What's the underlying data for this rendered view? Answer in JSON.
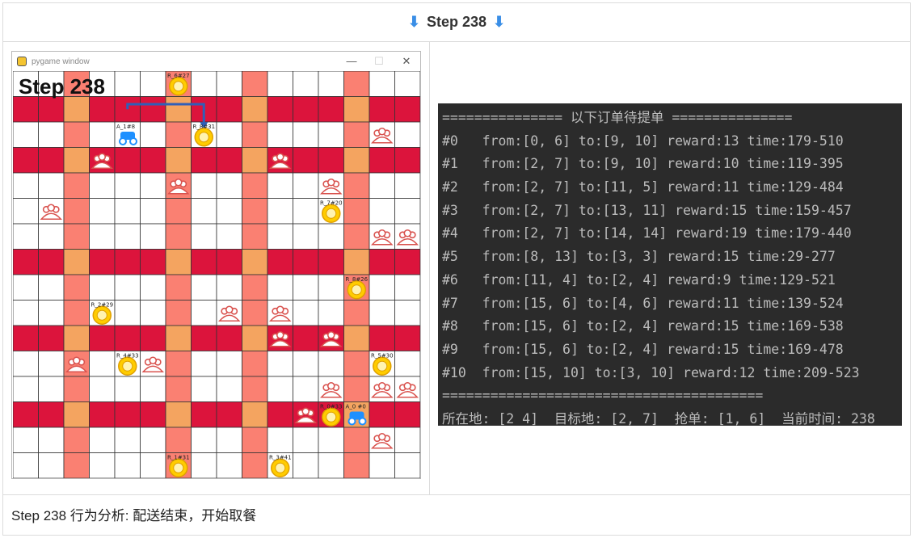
{
  "header": {
    "title": "Step 238",
    "arrow_left": "⬇",
    "arrow_right": "⬇"
  },
  "footer": {
    "text": "Step 238 行为分析:  配送结束，开始取餐"
  },
  "window": {
    "title": "pygame window",
    "min": "—",
    "max": "☐",
    "close": "✕"
  },
  "game": {
    "step_label": "Step 238",
    "grid_size": 16,
    "colors": {
      "road_dark": "#dc143c",
      "road_mid": "#fa8072",
      "road_light": "#f4a460",
      "cell": "#ffffff",
      "line": "#333333",
      "path": "#2f5fb8"
    },
    "dark_rows": [
      1,
      3,
      7,
      10,
      13
    ],
    "mid_cols": [
      2,
      6,
      9,
      13
    ],
    "orders": [
      {
        "label": "R_6#27",
        "col": 6,
        "row": 0
      },
      {
        "label": "R_8#31",
        "col": 7,
        "row": 2
      },
      {
        "label": "R_7#20",
        "col": 12,
        "row": 5
      },
      {
        "label": "R_8#26",
        "col": 13,
        "row": 8
      },
      {
        "label": "R_2#29",
        "col": 3,
        "row": 9
      },
      {
        "label": "R_4#33",
        "col": 4,
        "row": 11
      },
      {
        "label": "R_5#30",
        "col": 14,
        "row": 11
      },
      {
        "label": "R_0#33",
        "col": 12,
        "row": 13
      },
      {
        "label": "R_1#31",
        "col": 6,
        "row": 15
      },
      {
        "label": "R_3#41",
        "col": 10,
        "row": 15
      }
    ],
    "customers": [
      [
        14,
        2
      ],
      [
        3,
        3
      ],
      [
        10,
        3
      ],
      [
        6,
        4
      ],
      [
        12,
        4
      ],
      [
        1,
        5
      ],
      [
        14,
        6
      ],
      [
        15,
        6
      ],
      [
        8,
        9
      ],
      [
        10,
        9
      ],
      [
        10,
        10
      ],
      [
        12,
        10
      ],
      [
        2,
        11
      ],
      [
        5,
        11
      ],
      [
        12,
        12
      ],
      [
        14,
        12
      ],
      [
        15,
        12
      ],
      [
        11,
        13
      ],
      [
        14,
        14
      ]
    ],
    "riders": [
      {
        "label": "A_1#8",
        "col": 4,
        "row": 2
      },
      {
        "label": "A_0 #0",
        "col": 13,
        "row": 13
      }
    ],
    "path": [
      [
        4.5,
        1.5
      ],
      [
        4.5,
        1.3
      ],
      [
        7.5,
        1.3
      ],
      [
        7.5,
        2.2
      ]
    ]
  },
  "terminal": {
    "header": "=============== 以下订单待提单 ===============",
    "orders": [
      "#0   from:[0, 6] to:[9, 10] reward:13 time:179-510",
      "#1   from:[2, 7] to:[9, 10] reward:10 time:119-395",
      "#2   from:[2, 7] to:[11, 5] reward:11 time:129-484",
      "#3   from:[2, 7] to:[13, 11] reward:15 time:159-457",
      "#4   from:[2, 7] to:[14, 14] reward:19 time:179-440",
      "#5   from:[8, 13] to:[3, 3] reward:15 time:29-277",
      "#6   from:[11, 4] to:[2, 4] reward:9 time:129-521",
      "#7   from:[15, 6] to:[4, 6] reward:11 time:139-524",
      "#8   from:[15, 6] to:[2, 4] reward:15 time:169-538",
      "#9   from:[15, 6] to:[2, 4] reward:15 time:169-478",
      "#10  from:[15, 10] to:[3, 10] reward:12 time:209-523"
    ],
    "footer_line": "========================================",
    "status": "所在地: [2 4]  目标地: [2, 7]  抢单: [1, 6]  当前时间: 238"
  }
}
